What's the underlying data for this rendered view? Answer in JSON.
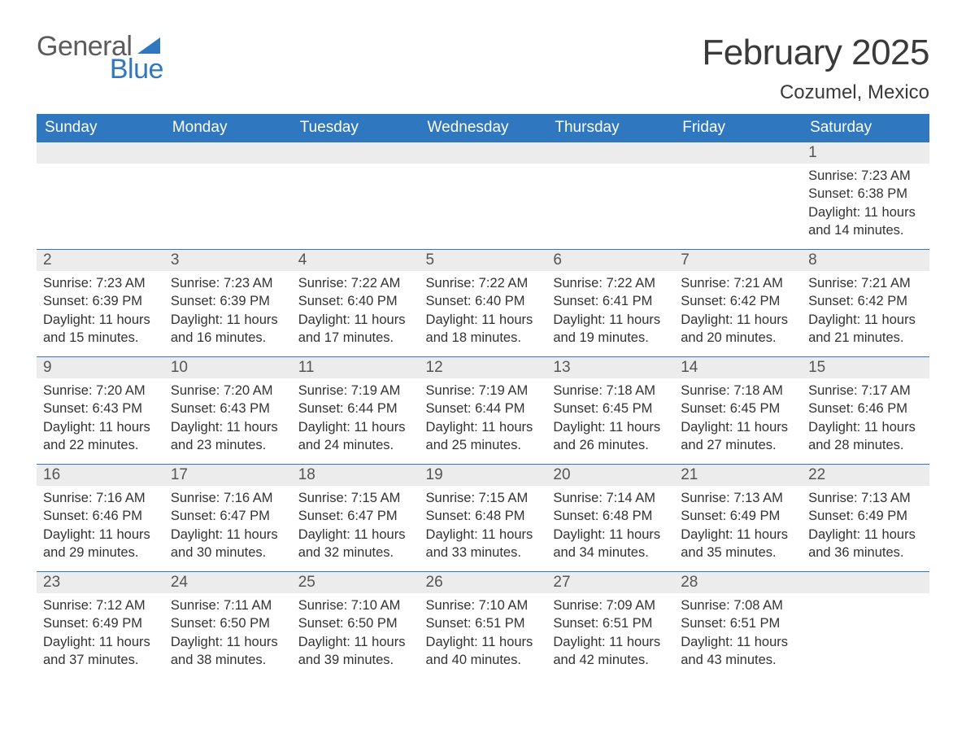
{
  "brand": {
    "word1": "General",
    "word2": "Blue",
    "color_primary": "#2f78bf",
    "color_text": "#5b5b5b"
  },
  "title": "February 2025",
  "location": "Cozumel, Mexico",
  "colors": {
    "header_bg": "#2f78bf",
    "header_fg": "#ffffff",
    "row_divider": "#2f78bf",
    "daynum_bg": "#ececec",
    "body_bg": "#ffffff",
    "text": "#333333"
  },
  "dayNames": [
    "Sunday",
    "Monday",
    "Tuesday",
    "Wednesday",
    "Thursday",
    "Friday",
    "Saturday"
  ],
  "labels": {
    "sunrise": "Sunrise:",
    "sunset": "Sunset:",
    "daylight": "Daylight:"
  },
  "weeks": [
    [
      {
        "blank": true
      },
      {
        "blank": true
      },
      {
        "blank": true
      },
      {
        "blank": true
      },
      {
        "blank": true
      },
      {
        "blank": true
      },
      {
        "day": "1",
        "sunrise": "7:23 AM",
        "sunset": "6:38 PM",
        "daylight": "11 hours and 14 minutes."
      }
    ],
    [
      {
        "day": "2",
        "sunrise": "7:23 AM",
        "sunset": "6:39 PM",
        "daylight": "11 hours and 15 minutes."
      },
      {
        "day": "3",
        "sunrise": "7:23 AM",
        "sunset": "6:39 PM",
        "daylight": "11 hours and 16 minutes."
      },
      {
        "day": "4",
        "sunrise": "7:22 AM",
        "sunset": "6:40 PM",
        "daylight": "11 hours and 17 minutes."
      },
      {
        "day": "5",
        "sunrise": "7:22 AM",
        "sunset": "6:40 PM",
        "daylight": "11 hours and 18 minutes."
      },
      {
        "day": "6",
        "sunrise": "7:22 AM",
        "sunset": "6:41 PM",
        "daylight": "11 hours and 19 minutes."
      },
      {
        "day": "7",
        "sunrise": "7:21 AM",
        "sunset": "6:42 PM",
        "daylight": "11 hours and 20 minutes."
      },
      {
        "day": "8",
        "sunrise": "7:21 AM",
        "sunset": "6:42 PM",
        "daylight": "11 hours and 21 minutes."
      }
    ],
    [
      {
        "day": "9",
        "sunrise": "7:20 AM",
        "sunset": "6:43 PM",
        "daylight": "11 hours and 22 minutes."
      },
      {
        "day": "10",
        "sunrise": "7:20 AM",
        "sunset": "6:43 PM",
        "daylight": "11 hours and 23 minutes."
      },
      {
        "day": "11",
        "sunrise": "7:19 AM",
        "sunset": "6:44 PM",
        "daylight": "11 hours and 24 minutes."
      },
      {
        "day": "12",
        "sunrise": "7:19 AM",
        "sunset": "6:44 PM",
        "daylight": "11 hours and 25 minutes."
      },
      {
        "day": "13",
        "sunrise": "7:18 AM",
        "sunset": "6:45 PM",
        "daylight": "11 hours and 26 minutes."
      },
      {
        "day": "14",
        "sunrise": "7:18 AM",
        "sunset": "6:45 PM",
        "daylight": "11 hours and 27 minutes."
      },
      {
        "day": "15",
        "sunrise": "7:17 AM",
        "sunset": "6:46 PM",
        "daylight": "11 hours and 28 minutes."
      }
    ],
    [
      {
        "day": "16",
        "sunrise": "7:16 AM",
        "sunset": "6:46 PM",
        "daylight": "11 hours and 29 minutes."
      },
      {
        "day": "17",
        "sunrise": "7:16 AM",
        "sunset": "6:47 PM",
        "daylight": "11 hours and 30 minutes."
      },
      {
        "day": "18",
        "sunrise": "7:15 AM",
        "sunset": "6:47 PM",
        "daylight": "11 hours and 32 minutes."
      },
      {
        "day": "19",
        "sunrise": "7:15 AM",
        "sunset": "6:48 PM",
        "daylight": "11 hours and 33 minutes."
      },
      {
        "day": "20",
        "sunrise": "7:14 AM",
        "sunset": "6:48 PM",
        "daylight": "11 hours and 34 minutes."
      },
      {
        "day": "21",
        "sunrise": "7:13 AM",
        "sunset": "6:49 PM",
        "daylight": "11 hours and 35 minutes."
      },
      {
        "day": "22",
        "sunrise": "7:13 AM",
        "sunset": "6:49 PM",
        "daylight": "11 hours and 36 minutes."
      }
    ],
    [
      {
        "day": "23",
        "sunrise": "7:12 AM",
        "sunset": "6:49 PM",
        "daylight": "11 hours and 37 minutes."
      },
      {
        "day": "24",
        "sunrise": "7:11 AM",
        "sunset": "6:50 PM",
        "daylight": "11 hours and 38 minutes."
      },
      {
        "day": "25",
        "sunrise": "7:10 AM",
        "sunset": "6:50 PM",
        "daylight": "11 hours and 39 minutes."
      },
      {
        "day": "26",
        "sunrise": "7:10 AM",
        "sunset": "6:51 PM",
        "daylight": "11 hours and 40 minutes."
      },
      {
        "day": "27",
        "sunrise": "7:09 AM",
        "sunset": "6:51 PM",
        "daylight": "11 hours and 42 minutes."
      },
      {
        "day": "28",
        "sunrise": "7:08 AM",
        "sunset": "6:51 PM",
        "daylight": "11 hours and 43 minutes."
      },
      {
        "blank": true
      }
    ]
  ]
}
